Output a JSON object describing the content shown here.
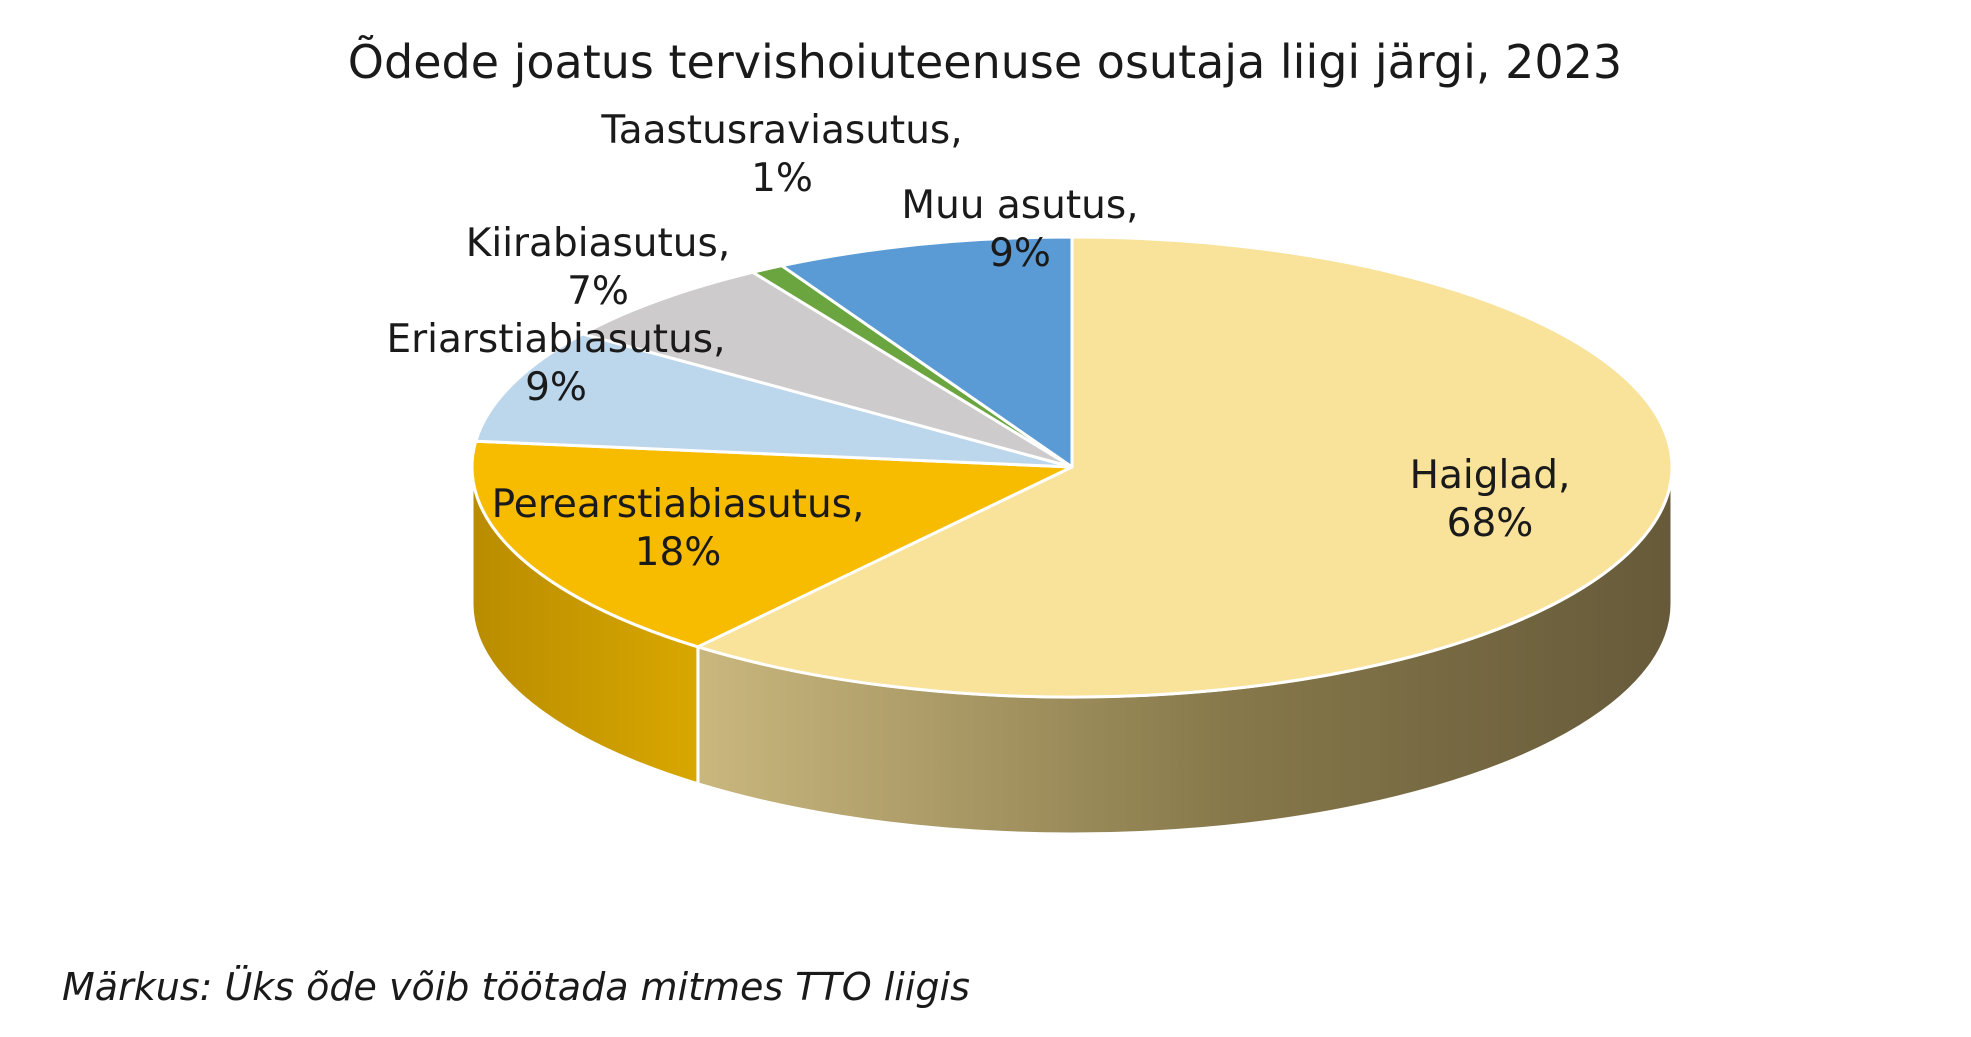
{
  "chart_data": {
    "type": "pie",
    "title": "Õdede joatus tervishoiuteenuse osutaja liigi järgi, 2023",
    "slices": [
      {
        "category": "Haiglad",
        "label": "Haiglad,",
        "value": 68,
        "value_label": "68%",
        "color": "#F9E29A"
      },
      {
        "category": "Perearstiabiasutus",
        "label": "Perearstiabiasutus,",
        "value": 18,
        "value_label": "18%",
        "color": "#F7BC00"
      },
      {
        "category": "Eriarstiabiasutus",
        "label": "Eriarstiabiasutus,",
        "value": 9,
        "value_label": "9%",
        "color": "#BCD6EC"
      },
      {
        "category": "Kiirabiasutus",
        "label": "Kiirabiasutus,",
        "value": 7,
        "value_label": "7%",
        "color": "#CDCBCB"
      },
      {
        "category": "Taastusraviasutus",
        "label": "Taastusraviasutus,",
        "value": 1,
        "value_label": "1%",
        "color": "#6BA540"
      },
      {
        "category": "Muu asutus",
        "label": "Muu asutus,",
        "value": 9,
        "value_label": "9%",
        "color": "#5B9BD5"
      }
    ]
  },
  "footnote": "Märkus: Üks õde võib töötada mitmes TTO liigis"
}
